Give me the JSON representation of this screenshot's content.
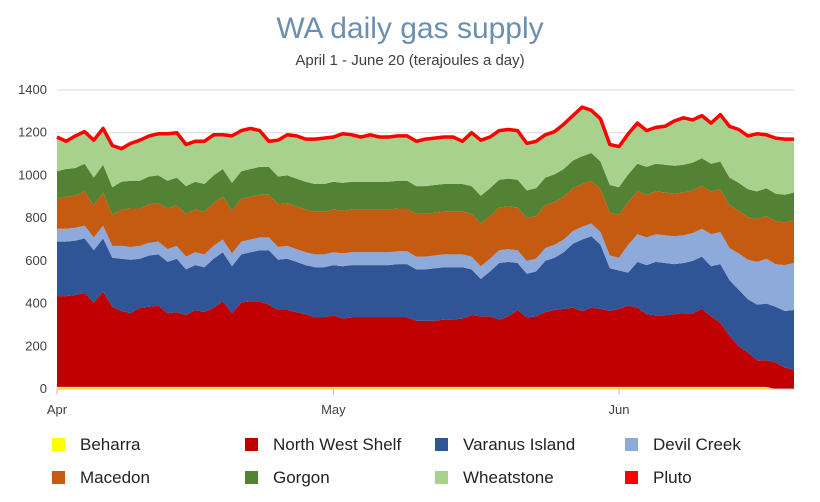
{
  "chart_data": {
    "type": "area",
    "title": "WA daily gas supply",
    "subtitle": "April 1 - June  20 (terajoules a day)",
    "xlabel": "",
    "ylabel": "",
    "ylim": [
      0,
      1400
    ],
    "yticks": [
      0,
      200,
      400,
      600,
      800,
      1000,
      1200,
      1400
    ],
    "x_ticks": [
      {
        "label": "Apr",
        "day": 0
      },
      {
        "label": "May",
        "day": 30
      },
      {
        "label": "Jun",
        "day": 61
      }
    ],
    "x_range_days": [
      0,
      80
    ],
    "grid": true,
    "stacked": true,
    "legend_position": "bottom",
    "series": [
      {
        "name": "Beharra",
        "color": "#ffff00",
        "values": [
          10,
          10,
          10,
          10,
          10,
          10,
          10,
          10,
          10,
          10,
          10,
          10,
          10,
          10,
          10,
          10,
          10,
          10,
          10,
          10,
          10,
          10,
          10,
          10,
          10,
          10,
          10,
          10,
          10,
          10,
          10,
          10,
          10,
          10,
          10,
          10,
          10,
          10,
          10,
          10,
          10,
          10,
          10,
          10,
          10,
          10,
          10,
          10,
          10,
          10,
          10,
          10,
          10,
          10,
          10,
          10,
          10,
          10,
          10,
          10,
          10,
          10,
          10,
          10,
          10,
          10,
          10,
          10,
          10,
          10,
          10,
          10,
          10,
          10,
          10,
          10,
          10,
          10,
          0,
          0,
          0
        ]
      },
      {
        "name": "North West Shelf",
        "color": "#c00000",
        "values": [
          425,
          425,
          430,
          440,
          395,
          445,
          375,
          355,
          345,
          370,
          375,
          380,
          345,
          350,
          335,
          360,
          350,
          370,
          400,
          345,
          395,
          400,
          400,
          385,
          360,
          360,
          350,
          340,
          325,
          325,
          335,
          320,
          325,
          325,
          325,
          325,
          325,
          325,
          325,
          310,
          310,
          310,
          315,
          315,
          320,
          335,
          330,
          330,
          315,
          330,
          360,
          325,
          330,
          350,
          360,
          365,
          370,
          355,
          370,
          365,
          355,
          365,
          380,
          370,
          340,
          335,
          335,
          340,
          345,
          345,
          365,
          330,
          300,
          240,
          190,
          160,
          125,
          125,
          125,
          100,
          90
        ]
      },
      {
        "name": "Varanus Island",
        "color": "#2f5597",
        "values": [
          255,
          255,
          255,
          255,
          245,
          250,
          230,
          245,
          250,
          230,
          240,
          240,
          240,
          250,
          215,
          210,
          210,
          230,
          230,
          220,
          225,
          230,
          240,
          255,
          235,
          240,
          235,
          230,
          235,
          235,
          235,
          245,
          245,
          245,
          245,
          245,
          245,
          250,
          250,
          240,
          240,
          245,
          245,
          245,
          240,
          215,
          175,
          210,
          265,
          255,
          220,
          205,
          210,
          240,
          245,
          265,
          300,
          335,
          335,
          300,
          200,
          180,
          155,
          215,
          230,
          250,
          245,
          235,
          235,
          245,
          245,
          235,
          275,
          260,
          265,
          250,
          260,
          265,
          260,
          265,
          280
        ]
      },
      {
        "name": "Devil Creek",
        "color": "#8eaadb",
        "values": [
          60,
          60,
          60,
          60,
          60,
          60,
          55,
          60,
          60,
          60,
          60,
          60,
          60,
          60,
          60,
          60,
          60,
          60,
          60,
          60,
          60,
          60,
          60,
          60,
          60,
          60,
          60,
          60,
          60,
          60,
          60,
          60,
          60,
          60,
          60,
          60,
          60,
          60,
          60,
          60,
          60,
          60,
          60,
          60,
          60,
          60,
          60,
          60,
          60,
          60,
          60,
          60,
          60,
          60,
          60,
          60,
          60,
          60,
          60,
          60,
          60,
          60,
          130,
          130,
          130,
          130,
          130,
          130,
          130,
          130,
          130,
          150,
          150,
          150,
          170,
          185,
          200,
          210,
          200,
          215,
          220
        ]
      },
      {
        "name": "Macedon",
        "color": "#c55a11",
        "values": [
          140,
          150,
          150,
          160,
          150,
          155,
          145,
          170,
          180,
          175,
          180,
          180,
          190,
          190,
          200,
          200,
          200,
          200,
          200,
          200,
          200,
          200,
          200,
          200,
          200,
          200,
          200,
          200,
          200,
          200,
          200,
          200,
          200,
          200,
          200,
          200,
          200,
          200,
          200,
          200,
          200,
          200,
          200,
          200,
          200,
          200,
          200,
          200,
          200,
          200,
          200,
          200,
          200,
          200,
          200,
          200,
          200,
          200,
          200,
          200,
          200,
          200,
          200,
          200,
          200,
          200,
          200,
          200,
          200,
          200,
          200,
          200,
          200,
          200,
          200,
          200,
          200,
          200,
          200,
          200,
          200
        ]
      },
      {
        "name": "Gorgon",
        "color": "#548235",
        "values": [
          130,
          130,
          130,
          130,
          130,
          130,
          130,
          130,
          130,
          130,
          130,
          130,
          130,
          130,
          130,
          130,
          130,
          130,
          130,
          130,
          130,
          130,
          130,
          130,
          130,
          130,
          130,
          130,
          130,
          130,
          130,
          130,
          130,
          130,
          130,
          130,
          130,
          130,
          130,
          130,
          130,
          130,
          130,
          130,
          130,
          130,
          130,
          130,
          130,
          130,
          130,
          130,
          130,
          130,
          130,
          130,
          130,
          130,
          130,
          130,
          130,
          130,
          130,
          130,
          130,
          130,
          130,
          130,
          130,
          130,
          130,
          130,
          130,
          130,
          130,
          130,
          130,
          130,
          130,
          130,
          130
        ]
      },
      {
        "name": "Wheatstone",
        "color": "#a9d18e",
        "values": [
          160,
          130,
          150,
          150,
          175,
          170,
          195,
          155,
          175,
          190,
          190,
          195,
          220,
          210,
          195,
          190,
          200,
          190,
          160,
          220,
          190,
          190,
          170,
          120,
          170,
          190,
          200,
          200,
          210,
          215,
          210,
          230,
          220,
          210,
          220,
          210,
          210,
          210,
          210,
          210,
          220,
          220,
          220,
          220,
          200,
          250,
          260,
          240,
          230,
          230,
          230,
          220,
          220,
          200,
          200,
          210,
          210,
          230,
          200,
          200,
          190,
          190,
          190,
          190,
          170,
          170,
          180,
          210,
          220,
          200,
          200,
          190,
          220,
          240,
          250,
          250,
          270,
          250,
          260,
          260,
          250
        ]
      },
      {
        "name": "Pluto",
        "color": "#ff0000",
        "values": [
          0,
          0,
          0,
          0,
          0,
          0,
          0,
          0,
          0,
          0,
          0,
          0,
          0,
          0,
          0,
          0,
          0,
          0,
          0,
          0,
          0,
          0,
          0,
          0,
          0,
          0,
          0,
          0,
          0,
          0,
          0,
          0,
          0,
          0,
          0,
          0,
          0,
          0,
          0,
          0,
          0,
          0,
          0,
          0,
          0,
          0,
          0,
          0,
          0,
          0,
          0,
          0,
          0,
          0,
          0,
          0,
          0,
          0,
          0,
          0,
          0,
          0,
          0,
          0,
          0,
          0,
          0,
          0,
          0,
          0,
          0,
          0,
          0,
          0,
          0,
          0,
          0,
          0,
          0,
          0,
          0
        ]
      }
    ]
  }
}
